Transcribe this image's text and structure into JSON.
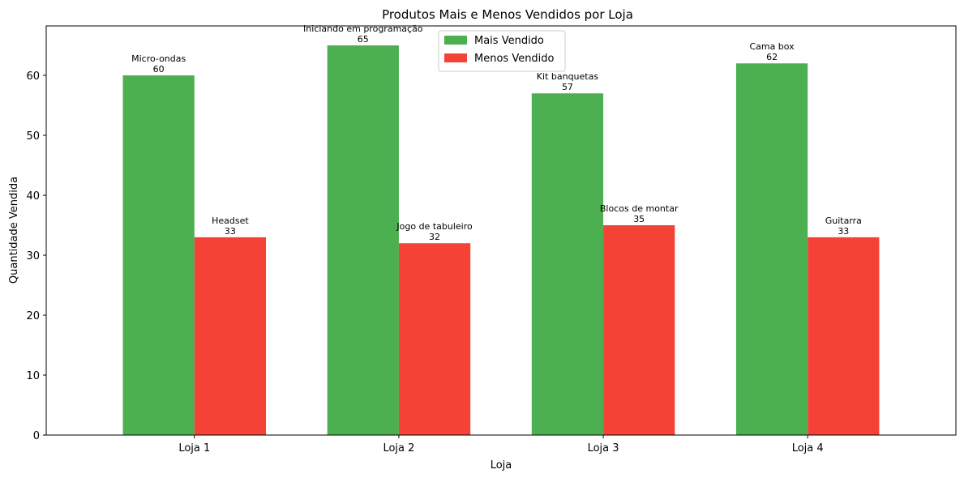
{
  "chart_data": {
    "type": "bar",
    "title": "Produtos Mais e Menos Vendidos por Loja",
    "xlabel": "Loja",
    "ylabel": "Quantidade Vendida",
    "categories": [
      "Loja 1",
      "Loja 2",
      "Loja 3",
      "Loja 4"
    ],
    "ylim": [
      0,
      68.25
    ],
    "yticks": [
      0,
      10,
      20,
      30,
      40,
      50,
      60
    ],
    "grid": false,
    "legend_position": "top-center",
    "series": [
      {
        "name": "Mais Vendido",
        "color": "#4caf50",
        "values": [
          60,
          65,
          57,
          62
        ],
        "products": [
          "Micro-ondas",
          "Iniciando em programação",
          "Kit banquetas",
          "Cama box"
        ]
      },
      {
        "name": "Menos Vendido",
        "color": "#f44336",
        "values": [
          33,
          32,
          35,
          33
        ],
        "products": [
          "Headset",
          "Jogo de tabuleiro",
          "Blocos de montar",
          "Guitarra"
        ]
      }
    ]
  }
}
